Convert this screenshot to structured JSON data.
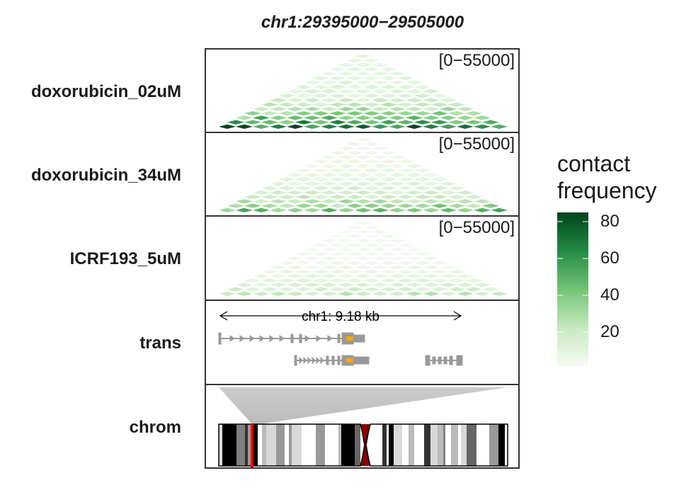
{
  "title": "chr1:29395000−29505000",
  "tracks": {
    "dox02": {
      "label": "doxorubicin_02uM",
      "range": "[0−55000]"
    },
    "dox34": {
      "label": "doxorubicin_34uM",
      "range": "[0−55000]"
    },
    "icrf": {
      "label": "ICRF193_5uM",
      "range": "[0−55000]"
    },
    "trans": {
      "label": "trans",
      "scale_label": "chr1: 9.18 kb"
    },
    "chrom": {
      "label": "chrom"
    }
  },
  "legend": {
    "title_line1": "contact",
    "title_line2": "frequency",
    "ticks": [
      "80",
      "60",
      "40",
      "20"
    ],
    "colors": {
      "low": "#f7fcf5",
      "mid": "#74c476",
      "high": "#00441b"
    }
  },
  "colors": {
    "gene": "#999999",
    "highlight": "#ffa500",
    "chrom_marker": "#ff0000",
    "centromere": "#8b0000"
  }
}
